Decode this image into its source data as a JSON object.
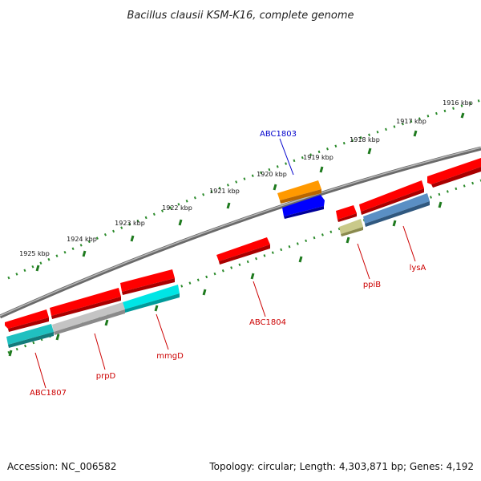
{
  "title": "Bacillus clausii KSM-K16, complete genome",
  "footer": {
    "accession": "Accession: NC_006582",
    "topology": "Topology: circular; Length: 4,303,871 bp; Genes: 4,192"
  },
  "ticks": [
    "1916 kbp",
    "1917 kbp",
    "1918 kbp",
    "1919 kbp",
    "1920 kbp",
    "1921 kbp",
    "1922 kbp",
    "1923 kbp",
    "1924 kbp",
    "1925 kbp"
  ],
  "gene_labels": {
    "abc1803": "ABC1803",
    "abc1804": "ABC1804",
    "ppiB": "ppiB",
    "lysA": "lysA",
    "mmgD": "mmgD",
    "prpD": "prpD",
    "abc1807": "ABC1807"
  },
  "colors": {
    "backbone": "#808080",
    "tick_dots": "#2a8a2a",
    "label_red": "#cc0000",
    "label_blue": "#0000cc",
    "gene_red": "#ff0000",
    "gene_orange": "#ff9900",
    "gene_blue": "#0000ff",
    "gene_olive": "#b5b56a",
    "gene_steelblue": "#4682b4",
    "gene_gray": "#b0b0b0",
    "gene_cyan": "#00e0e0",
    "gene_teal": "#20b2aa"
  }
}
